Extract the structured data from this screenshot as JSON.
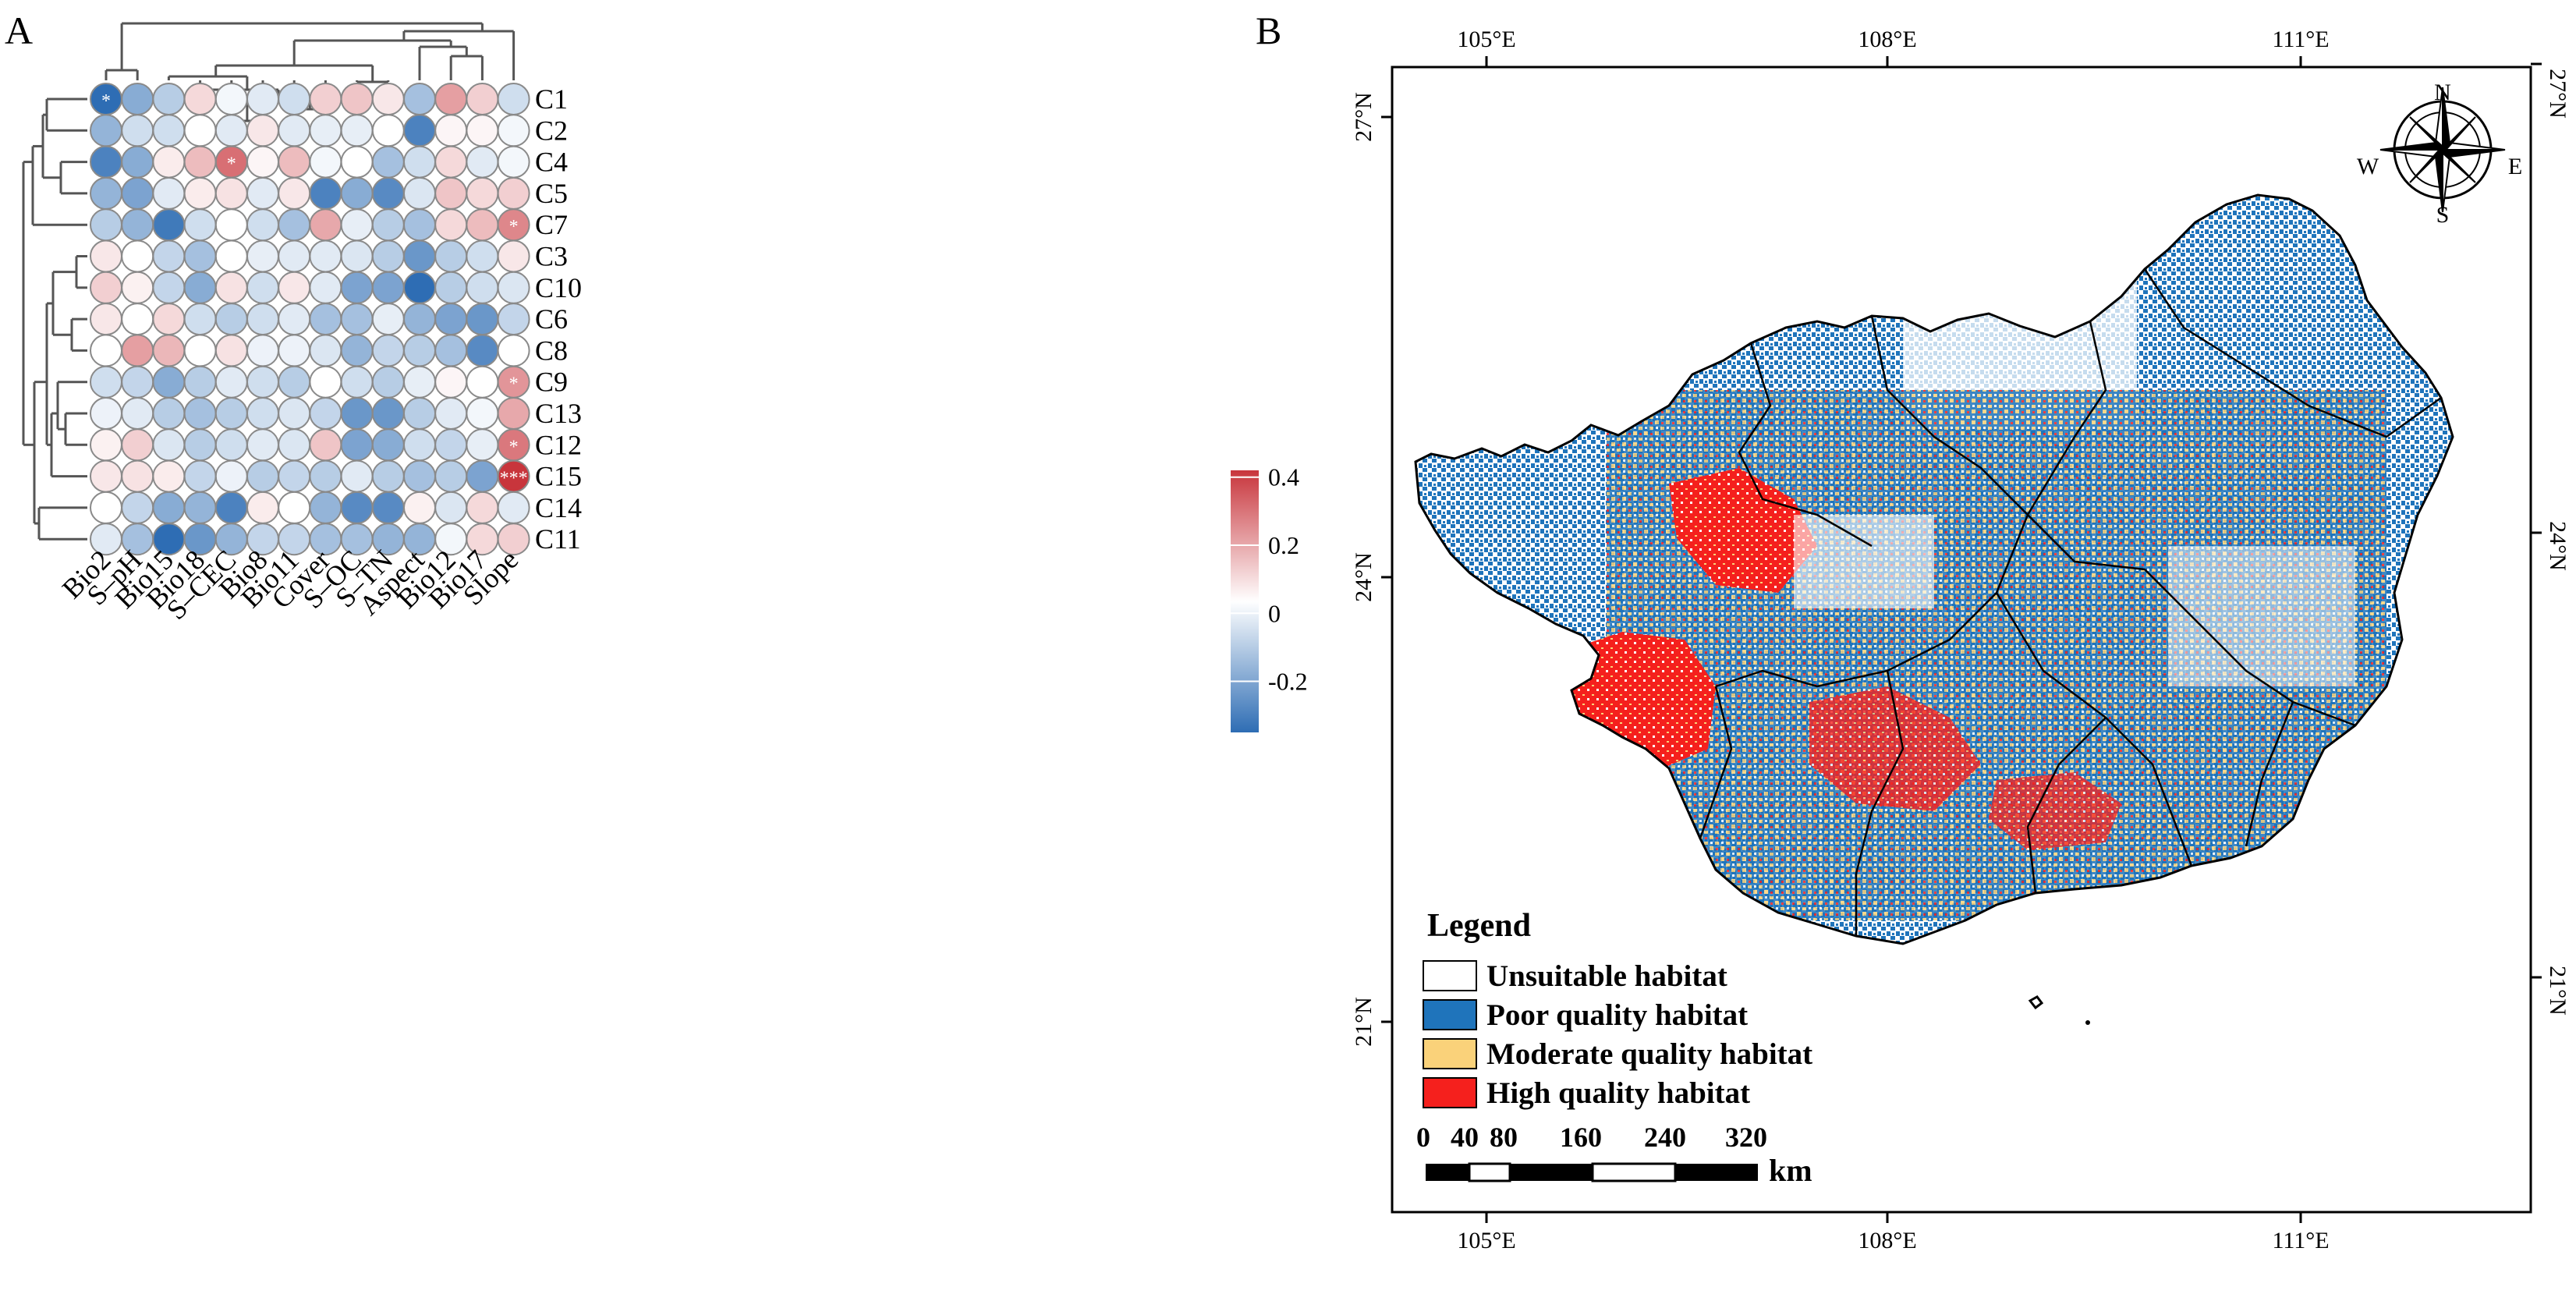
{
  "panel_a": {
    "panel_label": "A",
    "chart_data": {
      "type": "heatmap",
      "title": "",
      "columns": [
        "Bio2",
        "S–pH",
        "Bio15",
        "Bio18",
        "S–CEC",
        "Bio8",
        "Bio11",
        "Cover",
        "S–OC",
        "S–TN",
        "Aspect",
        "Bio12",
        "Bio17",
        "Slope"
      ],
      "rows": [
        "C1",
        "C2",
        "C4",
        "C5",
        "C7",
        "C3",
        "C10",
        "C6",
        "C8",
        "C9",
        "C13",
        "C12",
        "C15",
        "C14",
        "C11"
      ],
      "values": [
        [
          -0.35,
          -0.2,
          -0.12,
          0.08,
          -0.02,
          -0.05,
          -0.08,
          0.1,
          0.12,
          0.05,
          -0.15,
          0.2,
          0.1,
          -0.08
        ],
        [
          -0.18,
          -0.08,
          -0.08,
          0.0,
          -0.05,
          0.05,
          -0.05,
          -0.04,
          -0.04,
          0.0,
          -0.3,
          0.02,
          0.02,
          -0.02
        ],
        [
          -0.3,
          -0.2,
          0.04,
          0.14,
          0.3,
          0.02,
          0.14,
          -0.02,
          0.0,
          -0.15,
          -0.08,
          0.08,
          -0.05,
          -0.02
        ],
        [
          -0.18,
          -0.22,
          -0.05,
          0.04,
          0.06,
          -0.05,
          0.05,
          -0.3,
          -0.2,
          -0.28,
          -0.06,
          0.12,
          0.08,
          0.1
        ],
        [
          -0.12,
          -0.18,
          -0.32,
          -0.08,
          0.0,
          -0.08,
          -0.15,
          0.18,
          -0.04,
          -0.12,
          -0.15,
          0.08,
          0.14,
          0.25
        ],
        [
          0.05,
          0.0,
          -0.1,
          -0.15,
          0.0,
          -0.04,
          -0.05,
          -0.05,
          -0.06,
          -0.12,
          -0.25,
          -0.12,
          -0.08,
          0.05
        ],
        [
          0.1,
          0.03,
          -0.1,
          -0.2,
          0.06,
          -0.08,
          0.05,
          -0.05,
          -0.22,
          -0.22,
          -0.35,
          -0.12,
          -0.08,
          -0.06
        ],
        [
          0.05,
          0.0,
          0.08,
          -0.08,
          -0.12,
          -0.08,
          -0.05,
          -0.15,
          -0.15,
          -0.04,
          -0.18,
          -0.22,
          -0.25,
          -0.1
        ],
        [
          0.0,
          0.2,
          0.15,
          0.0,
          0.06,
          -0.03,
          -0.03,
          -0.06,
          -0.18,
          -0.1,
          -0.12,
          -0.15,
          -0.28,
          0.0
        ],
        [
          -0.08,
          -0.1,
          -0.2,
          -0.12,
          -0.05,
          -0.08,
          -0.12,
          0.0,
          -0.08,
          -0.12,
          -0.04,
          0.02,
          0.0,
          0.22
        ],
        [
          -0.03,
          -0.05,
          -0.12,
          -0.15,
          -0.12,
          -0.08,
          -0.06,
          -0.1,
          -0.25,
          -0.25,
          -0.12,
          -0.05,
          -0.02,
          0.18
        ],
        [
          0.03,
          0.1,
          -0.06,
          -0.12,
          -0.08,
          -0.05,
          -0.06,
          0.12,
          -0.22,
          -0.2,
          -0.08,
          -0.1,
          -0.04,
          0.28
        ],
        [
          0.05,
          0.06,
          0.04,
          -0.1,
          -0.03,
          -0.12,
          -0.1,
          -0.12,
          -0.05,
          -0.12,
          -0.15,
          -0.12,
          -0.22,
          0.42
        ],
        [
          0.0,
          -0.1,
          -0.2,
          -0.18,
          -0.3,
          0.04,
          0.0,
          -0.18,
          -0.28,
          -0.28,
          0.03,
          -0.06,
          0.08,
          -0.05
        ],
        [
          -0.05,
          -0.15,
          -0.35,
          -0.25,
          -0.18,
          -0.1,
          -0.1,
          -0.15,
          -0.15,
          -0.18,
          -0.18,
          -0.02,
          0.08,
          0.1
        ]
      ],
      "significance": [
        [
          "*",
          "",
          "",
          "",
          "",
          "",
          "",
          "",
          "",
          "",
          "",
          "",
          "",
          ""
        ],
        [
          "",
          "",
          "",
          "",
          "",
          "",
          "",
          "",
          "",
          "",
          "",
          "",
          "",
          ""
        ],
        [
          "",
          "",
          "",
          "",
          "*",
          "",
          "",
          "",
          "",
          "",
          "",
          "",
          "",
          ""
        ],
        [
          "",
          "",
          "",
          "",
          "",
          "",
          "",
          "",
          "",
          "",
          "",
          "",
          "",
          ""
        ],
        [
          "",
          "",
          "",
          "",
          "",
          "",
          "",
          "",
          "",
          "",
          "",
          "",
          "",
          "*"
        ],
        [
          "",
          "",
          "",
          "",
          "",
          "",
          "",
          "",
          "",
          "",
          "",
          "",
          "",
          ""
        ],
        [
          "",
          "",
          "",
          "",
          "",
          "",
          "",
          "",
          "",
          "",
          "",
          "",
          "",
          ""
        ],
        [
          "",
          "",
          "",
          "",
          "",
          "",
          "",
          "",
          "",
          "",
          "",
          "",
          "",
          ""
        ],
        [
          "",
          "",
          "",
          "",
          "",
          "",
          "",
          "",
          "",
          "",
          "",
          "",
          "",
          ""
        ],
        [
          "",
          "",
          "",
          "",
          "",
          "",
          "",
          "",
          "",
          "",
          "",
          "",
          "",
          "*"
        ],
        [
          "",
          "",
          "",
          "",
          "",
          "",
          "",
          "",
          "",
          "",
          "",
          "",
          "",
          ""
        ],
        [
          "",
          "",
          "",
          "",
          "",
          "",
          "",
          "",
          "",
          "",
          "",
          "",
          "",
          "*"
        ],
        [
          "",
          "",
          "",
          "",
          "",
          "",
          "",
          "",
          "",
          "",
          "",
          "",
          "",
          "***"
        ],
        [
          "",
          "",
          "",
          "",
          "",
          "",
          "",
          "",
          "",
          "",
          "",
          "",
          "",
          ""
        ],
        [
          "",
          "",
          "",
          "",
          "",
          "",
          "",
          "",
          "",
          "",
          "",
          "",
          "",
          ""
        ]
      ],
      "color_scale": {
        "min": -0.35,
        "max": 0.42,
        "ticks": [
          "0.4",
          "0.2",
          "0",
          "-0.2"
        ],
        "tick_values": [
          0.4,
          0.2,
          0,
          -0.2
        ],
        "low_color": "#2e6db4",
        "mid_color": "#ffffff",
        "high_color": "#c8353c"
      },
      "row_dendrogram_order": [
        "C1",
        "C2",
        "C4",
        "C5",
        "C7",
        "C3",
        "C10",
        "C6",
        "C8",
        "C9",
        "C13",
        "C12",
        "C15",
        "C14",
        "C11"
      ],
      "column_dendrogram_order": [
        "Bio2",
        "S–pH",
        "Bio15",
        "Bio18",
        "S–CEC",
        "Bio8",
        "Bio11",
        "Cover",
        "S–OC",
        "S–TN",
        "Aspect",
        "Bio12",
        "Bio17",
        "Slope"
      ]
    }
  },
  "panel_b": {
    "panel_label": "B",
    "axes": {
      "top_lon": [
        "105°E",
        "108°E",
        "111°E"
      ],
      "bottom_lon": [
        "105°E",
        "108°E",
        "111°E"
      ],
      "left_lat": [
        "27°N",
        "24°N",
        "21°N"
      ],
      "right_lat": [
        "27°N",
        "24°N",
        "21°N"
      ]
    },
    "compass": {
      "n": "N",
      "s": "S",
      "e": "E",
      "w": "W"
    },
    "legend": {
      "title": "Legend",
      "items": [
        {
          "label": "Unsuitable habitat",
          "color": "#ffffff"
        },
        {
          "label": "Poor quality habitat",
          "color": "#1f74bb"
        },
        {
          "label": "Moderate quality habitat",
          "color": "#fad27a"
        },
        {
          "label": "High quality habitat",
          "color": "#f5201d"
        }
      ]
    },
    "scale_bar": {
      "labels": [
        "0",
        "40",
        "80",
        "160",
        "240",
        "320"
      ],
      "unit": "km"
    }
  }
}
